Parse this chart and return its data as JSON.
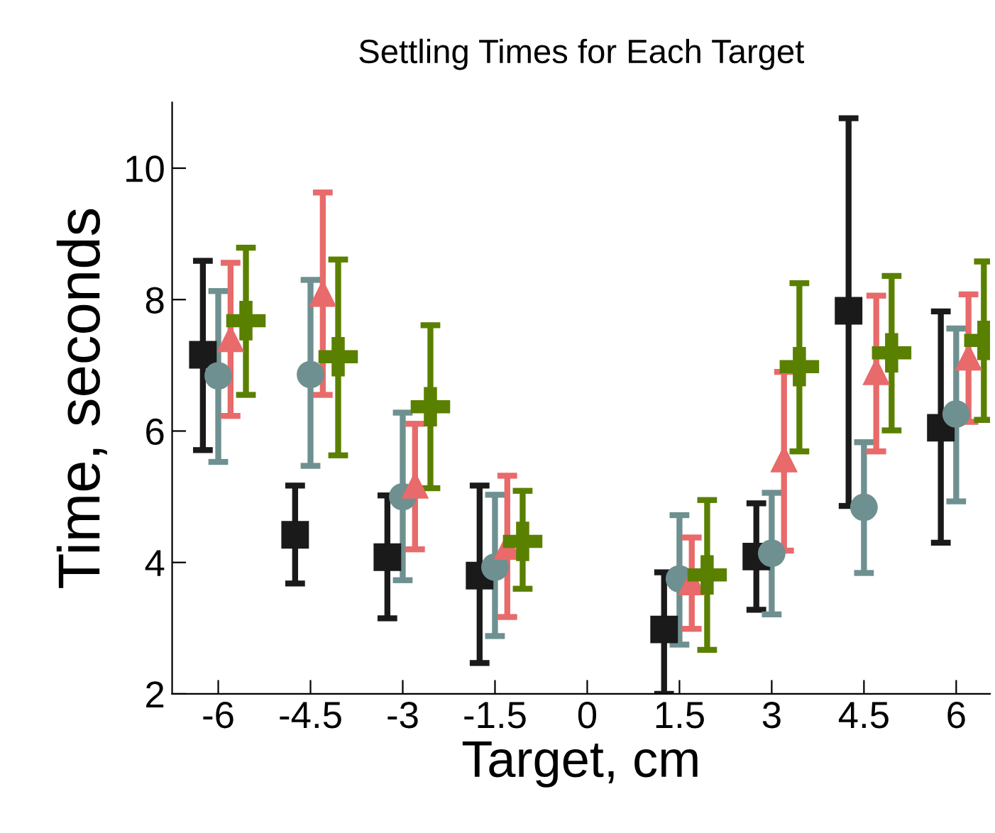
{
  "chart_data": {
    "type": "scatter",
    "title": "Settling Times for Each Target",
    "xlabel": "Target, cm",
    "ylabel": "Time, seconds",
    "xlim": [
      -6.75,
      6.55
    ],
    "ylim": [
      2,
      11
    ],
    "xticks": [
      -6,
      -4.5,
      -3,
      -1.5,
      0,
      1.5,
      3,
      4.5,
      6
    ],
    "yticks": [
      2,
      4,
      6,
      8,
      10
    ],
    "grid": false,
    "legend": false,
    "series": [
      {
        "color": "#1a1a1a",
        "marker": "square",
        "x": [
          -6.25,
          -4.75,
          -3.25,
          -1.75,
          1.25,
          2.75,
          4.25,
          5.75
        ],
        "values": [
          7.16,
          4.42,
          4.08,
          3.8,
          2.98,
          4.09,
          7.83,
          6.05
        ],
        "errors": [
          [
            5.71,
            8.59
          ],
          [
            3.68,
            5.17
          ],
          [
            3.15,
            5.02
          ],
          [
            2.47,
            5.17
          ],
          [
            2.0,
            3.85
          ],
          [
            3.28,
            4.9
          ],
          [
            4.86,
            10.76
          ],
          [
            4.3,
            7.82
          ]
        ]
      },
      {
        "color": "#6e9090",
        "marker": "circle",
        "x": [
          -6,
          -4.5,
          -3,
          -1.5,
          1.5,
          3,
          4.5,
          6
        ],
        "values": [
          6.84,
          6.86,
          5.0,
          3.93,
          3.75,
          4.14,
          4.84,
          6.26
        ],
        "errors": [
          [
            5.53,
            8.13
          ],
          [
            5.47,
            8.3
          ],
          [
            3.73,
            6.28
          ],
          [
            2.88,
            5.03
          ],
          [
            2.75,
            4.72
          ],
          [
            3.21,
            5.06
          ],
          [
            3.84,
            5.83
          ],
          [
            4.93,
            7.56
          ]
        ]
      },
      {
        "color": "#e86a6a",
        "marker": "triangle",
        "x": [
          -5.8,
          -4.3,
          -2.8,
          -1.3,
          1.7,
          3.2,
          4.7,
          6.2
        ],
        "values": [
          7.41,
          8.1,
          5.18,
          4.25,
          3.71,
          5.58,
          6.91,
          7.13
        ],
        "errors": [
          [
            6.23,
            8.56
          ],
          [
            6.55,
            9.63
          ],
          [
            4.2,
            6.11
          ],
          [
            3.17,
            5.32
          ],
          [
            2.99,
            4.38
          ],
          [
            4.18,
            6.9
          ],
          [
            5.69,
            8.06
          ],
          [
            6.14,
            8.08
          ]
        ]
      },
      {
        "color": "#5a8000",
        "marker": "cross",
        "x": [
          -5.55,
          -4.05,
          -2.55,
          -1.05,
          1.95,
          3.45,
          4.95,
          6.45
        ],
        "values": [
          7.68,
          7.13,
          6.37,
          4.32,
          3.81,
          6.98,
          7.19,
          7.38
        ],
        "errors": [
          [
            6.55,
            8.79
          ],
          [
            5.63,
            8.61
          ],
          [
            5.13,
            7.61
          ],
          [
            3.6,
            5.09
          ],
          [
            2.67,
            4.95
          ],
          [
            5.69,
            8.25
          ],
          [
            6.01,
            8.36
          ],
          [
            6.17,
            8.58
          ]
        ]
      }
    ]
  }
}
